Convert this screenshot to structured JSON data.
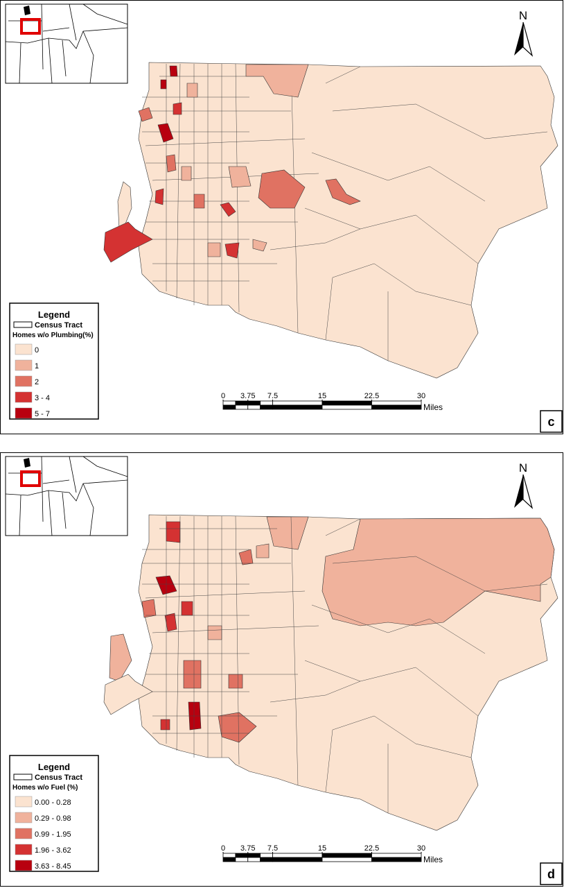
{
  "panels": [
    {
      "north": "N",
      "legend": {
        "title": "Legend",
        "tract": "Census Tract",
        "field": "Homes w/o Plumbing(%)",
        "classes": [
          {
            "label": "0",
            "color": "#fbe3d0"
          },
          {
            "label": "1",
            "color": "#f0b29c"
          },
          {
            "label": "2",
            "color": "#e07262"
          },
          {
            "label": "3 - 4",
            "color": "#d43232"
          },
          {
            "label": "5 - 7",
            "color": "#b8000f"
          }
        ]
      },
      "scale": {
        "ticks": [
          0,
          3.75,
          7.5,
          15,
          22.5,
          30
        ],
        "unit": "Miles"
      },
      "label": "c"
    },
    {
      "north": "N",
      "legend": {
        "title": "Legend",
        "tract": "Census Tract",
        "field": "Homes w/o Fuel (%)",
        "classes": [
          {
            "label": "0.00 - 0.28",
            "color": "#fbe3d0"
          },
          {
            "label": "0.29 - 0.98",
            "color": "#f0b29c"
          },
          {
            "label": "0.99 - 1.95",
            "color": "#e07262"
          },
          {
            "label": "1.96 - 3.62",
            "color": "#d43232"
          },
          {
            "label": "3.63 - 8.45",
            "color": "#b8000f"
          }
        ]
      },
      "scale": {
        "ticks": [
          0,
          3.75,
          7.5,
          15,
          22.5,
          30
        ],
        "unit": "Miles"
      },
      "label": "d"
    }
  ]
}
